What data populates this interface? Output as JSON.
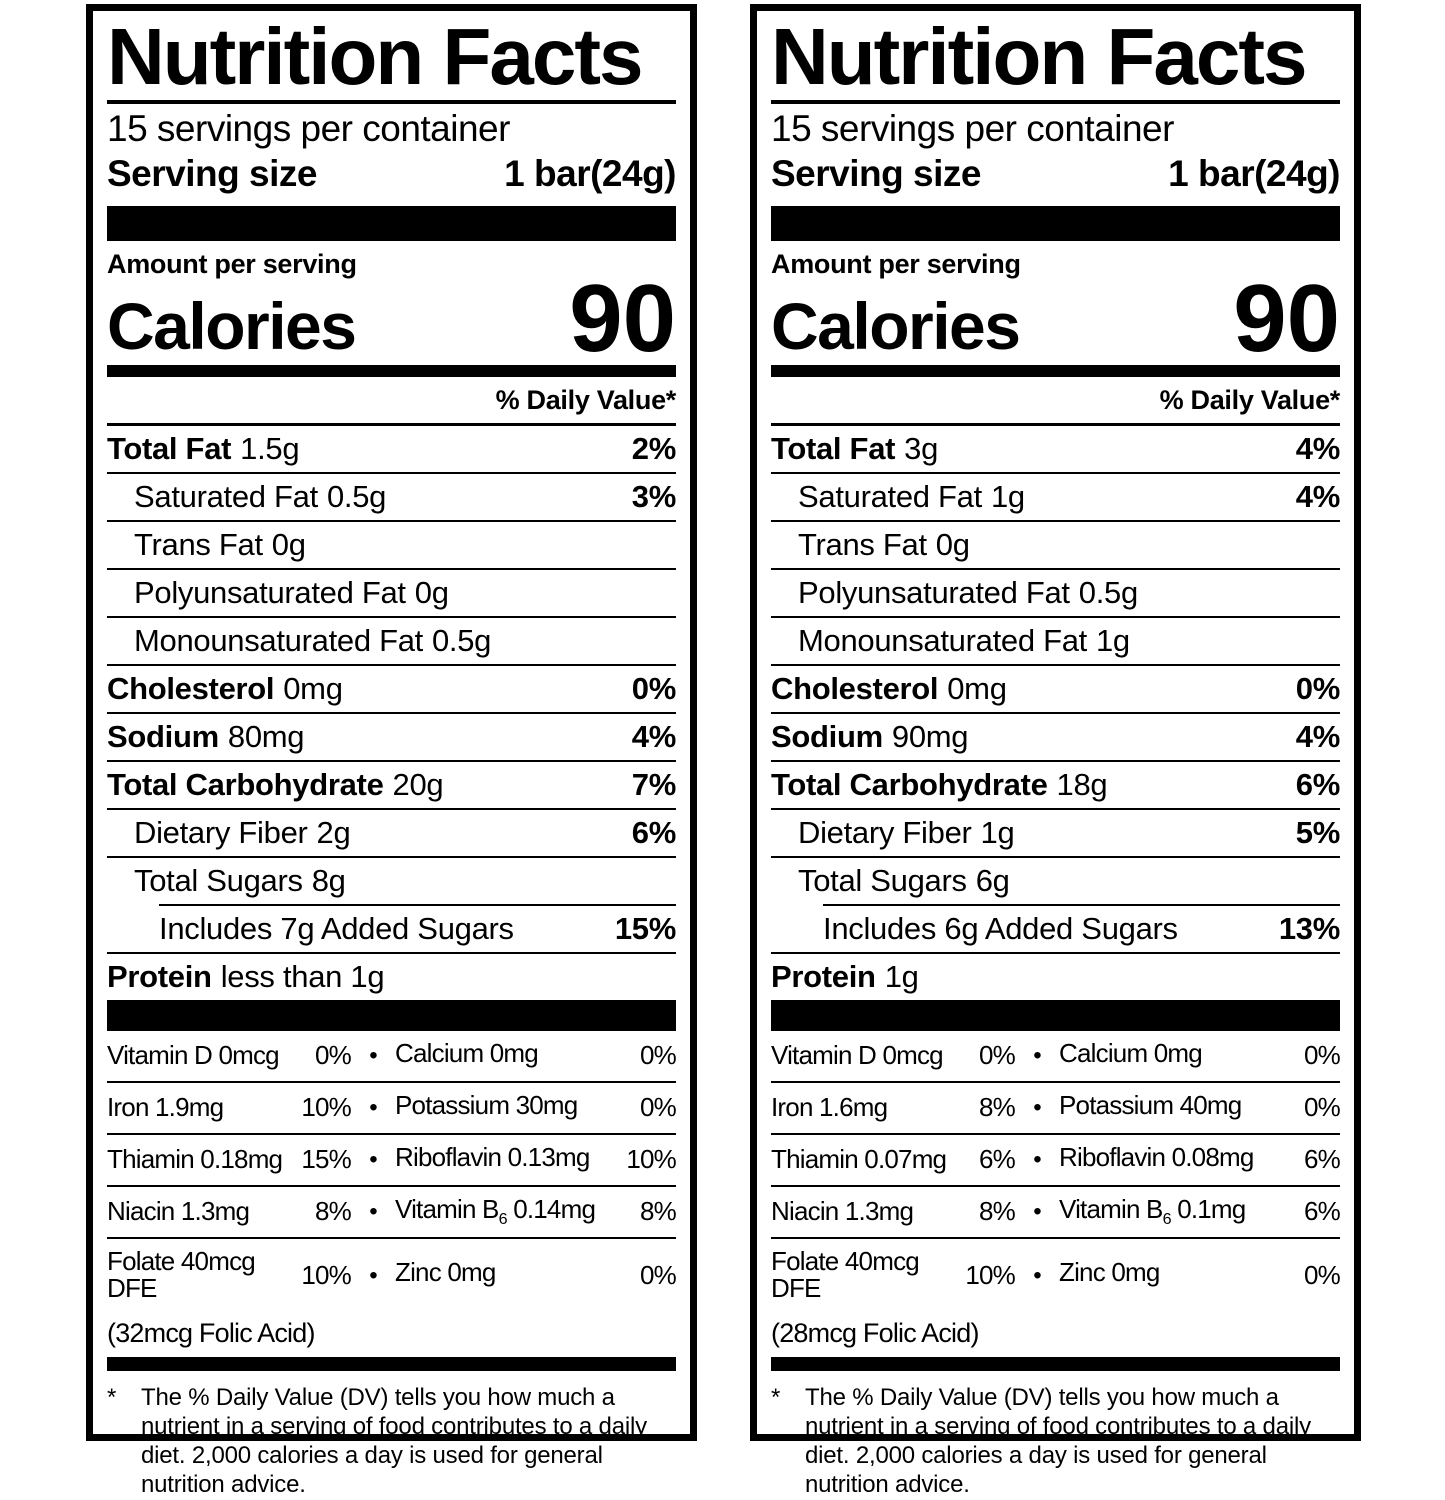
{
  "colors": {
    "ink": "#000000",
    "paper": "#ffffff"
  },
  "labels": [
    {
      "title": "Nutrition Facts",
      "servings_per_container": "15 servings per container",
      "serving_size": {
        "label": "Serving size",
        "value": "1 bar(24g)"
      },
      "amount_per_serving": "Amount per serving",
      "calories": {
        "label": "Calories",
        "value": "90"
      },
      "daily_value_header": "% Daily Value*",
      "nutrients": [
        {
          "name": "Total Fat",
          "amount": "1.5g",
          "dv": "2%",
          "bold": true,
          "indent": 0
        },
        {
          "name": "Saturated Fat",
          "amount": "0.5g",
          "dv": "3%",
          "bold": false,
          "indent": 1
        },
        {
          "name": "Trans Fat",
          "amount": "0g",
          "dv": "",
          "bold": false,
          "indent": 1
        },
        {
          "name": "Polyunsaturated Fat",
          "amount": "0g",
          "dv": "",
          "bold": false,
          "indent": 1
        },
        {
          "name": "Monounsaturated Fat",
          "amount": "0.5g",
          "dv": "",
          "bold": false,
          "indent": 1
        },
        {
          "name": "Cholesterol",
          "amount": "0mg",
          "dv": "0%",
          "bold": true,
          "indent": 0
        },
        {
          "name": "Sodium",
          "amount": "80mg",
          "dv": "4%",
          "bold": true,
          "indent": 0
        },
        {
          "name": "Total Carbohydrate",
          "amount": "20g",
          "dv": "7%",
          "bold": true,
          "indent": 0
        },
        {
          "name": "Dietary Fiber",
          "amount": "2g",
          "dv": "6%",
          "bold": false,
          "indent": 1
        },
        {
          "name": "Total Sugars",
          "amount": "8g",
          "dv": "",
          "bold": false,
          "indent": 1
        },
        {
          "name": "Includes 7g Added Sugars",
          "amount": "",
          "dv": "15%",
          "bold": false,
          "indent": 2
        },
        {
          "name": "Protein",
          "amount": "less than 1g",
          "dv": "",
          "bold": true,
          "indent": 0
        }
      ],
      "vitamins": [
        {
          "left_name": "Vitamin D 0mcg",
          "left_dv": "0%",
          "bullet": "•",
          "right_pre": "Calcium 0mg",
          "right_sub": "",
          "right_post": "",
          "right_dv": "0%"
        },
        {
          "left_name": "Iron 1.9mg",
          "left_dv": "10%",
          "bullet": "•",
          "right_pre": "Potassium 30mg",
          "right_sub": "",
          "right_post": "",
          "right_dv": "0%"
        },
        {
          "left_name": "Thiamin 0.18mg",
          "left_dv": "15%",
          "bullet": "•",
          "right_pre": "Riboflavin 0.13mg",
          "right_sub": "",
          "right_post": "",
          "right_dv": "10%"
        },
        {
          "left_name": "Niacin 1.3mg",
          "left_dv": "8%",
          "bullet": "•",
          "right_pre": "Vitamin B",
          "right_sub": "6",
          "right_post": " 0.14mg",
          "right_dv": "8%"
        },
        {
          "left_name": "Folate 40mcg DFE",
          "left_dv": "10%",
          "bullet": "•",
          "right_pre": "Zinc 0mg",
          "right_sub": "",
          "right_post": "",
          "right_dv": "0%"
        }
      ],
      "folic_acid_note": "(32mcg Folic Acid)",
      "footnote": {
        "marker": "*",
        "text": "The % Daily Value (DV) tells you how much a nutrient in a serving of food contributes to a daily diet. 2,000 calories a day is used for general nutrition advice."
      }
    },
    {
      "title": "Nutrition Facts",
      "servings_per_container": "15 servings per container",
      "serving_size": {
        "label": "Serving size",
        "value": "1 bar(24g)"
      },
      "amount_per_serving": "Amount per serving",
      "calories": {
        "label": "Calories",
        "value": "90"
      },
      "daily_value_header": "% Daily Value*",
      "nutrients": [
        {
          "name": "Total Fat",
          "amount": "3g",
          "dv": "4%",
          "bold": true,
          "indent": 0
        },
        {
          "name": "Saturated Fat",
          "amount": "1g",
          "dv": "4%",
          "bold": false,
          "indent": 1
        },
        {
          "name": "Trans Fat",
          "amount": "0g",
          "dv": "",
          "bold": false,
          "indent": 1
        },
        {
          "name": "Polyunsaturated Fat",
          "amount": "0.5g",
          "dv": "",
          "bold": false,
          "indent": 1
        },
        {
          "name": "Monounsaturated Fat",
          "amount": "1g",
          "dv": "",
          "bold": false,
          "indent": 1
        },
        {
          "name": "Cholesterol",
          "amount": "0mg",
          "dv": "0%",
          "bold": true,
          "indent": 0
        },
        {
          "name": "Sodium",
          "amount": "90mg",
          "dv": "4%",
          "bold": true,
          "indent": 0
        },
        {
          "name": "Total Carbohydrate",
          "amount": "18g",
          "dv": "6%",
          "bold": true,
          "indent": 0
        },
        {
          "name": "Dietary Fiber",
          "amount": "1g",
          "dv": "5%",
          "bold": false,
          "indent": 1
        },
        {
          "name": "Total Sugars",
          "amount": "6g",
          "dv": "",
          "bold": false,
          "indent": 1
        },
        {
          "name": "Includes 6g Added Sugars",
          "amount": "",
          "dv": "13%",
          "bold": false,
          "indent": 2
        },
        {
          "name": "Protein",
          "amount": "1g",
          "dv": "",
          "bold": true,
          "indent": 0
        }
      ],
      "vitamins": [
        {
          "left_name": "Vitamin D 0mcg",
          "left_dv": "0%",
          "bullet": "•",
          "right_pre": "Calcium 0mg",
          "right_sub": "",
          "right_post": "",
          "right_dv": "0%"
        },
        {
          "left_name": "Iron 1.6mg",
          "left_dv": "8%",
          "bullet": "•",
          "right_pre": "Potassium 40mg",
          "right_sub": "",
          "right_post": "",
          "right_dv": "0%"
        },
        {
          "left_name": "Thiamin 0.07mg",
          "left_dv": "6%",
          "bullet": "•",
          "right_pre": "Riboflavin 0.08mg",
          "right_sub": "",
          "right_post": "",
          "right_dv": "6%"
        },
        {
          "left_name": "Niacin 1.3mg",
          "left_dv": "8%",
          "bullet": "•",
          "right_pre": "Vitamin B",
          "right_sub": "6",
          "right_post": " 0.1mg",
          "right_dv": "6%"
        },
        {
          "left_name": "Folate 40mcg DFE",
          "left_dv": "10%",
          "bullet": "•",
          "right_pre": "Zinc 0mg",
          "right_sub": "",
          "right_post": "",
          "right_dv": "0%"
        }
      ],
      "folic_acid_note": "(28mcg Folic Acid)",
      "footnote": {
        "marker": "*",
        "text": "The % Daily Value (DV) tells you how much a nutrient in a serving of food contributes to a daily diet. 2,000 calories a day is used for general nutrition advice."
      }
    }
  ]
}
